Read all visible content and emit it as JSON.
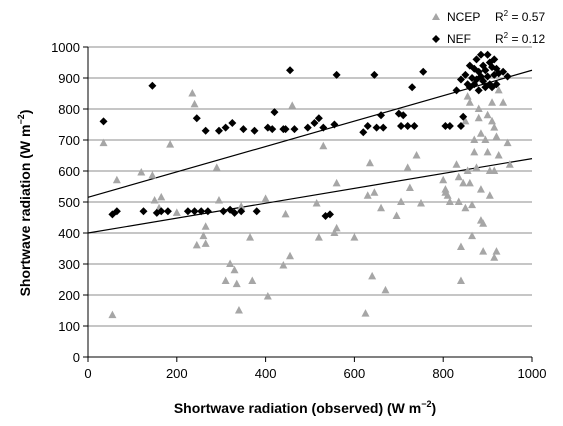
{
  "chart_data": {
    "type": "scatter",
    "title": "",
    "xlabel": "Shortwave radiation (observed) (W m",
    "xlabel_exp": "−2",
    "xlabel_end": ")",
    "ylabel": "Shortwave radiation  (W m",
    "ylabel_exp": "−2",
    "ylabel_end": ")",
    "xlim": [
      0,
      1000
    ],
    "ylim": [
      0,
      1000
    ],
    "xticks": [
      "0",
      "200",
      "400",
      "600",
      "800",
      "1000"
    ],
    "yticks": [
      "0",
      "100",
      "200",
      "300",
      "400",
      "500",
      "600",
      "700",
      "800",
      "900",
      "1000"
    ],
    "grid": "horizontal",
    "legend_position": "top-right",
    "series": [
      {
        "name": "NCEP",
        "marker": "triangle",
        "color": "#a6a6a6",
        "r2_label": "R",
        "r2_exp": "2",
        "r2_value": " = 0.57",
        "trend": [
          [
            0,
            400
          ],
          [
            1000,
            640
          ]
        ],
        "points": [
          [
            35,
            690
          ],
          [
            55,
            135
          ],
          [
            65,
            570
          ],
          [
            120,
            595
          ],
          [
            145,
            585
          ],
          [
            150,
            505
          ],
          [
            160,
            480
          ],
          [
            165,
            515
          ],
          [
            185,
            685
          ],
          [
            200,
            465
          ],
          [
            235,
            850
          ],
          [
            240,
            815
          ],
          [
            245,
            360
          ],
          [
            260,
            390
          ],
          [
            265,
            420
          ],
          [
            265,
            365
          ],
          [
            290,
            610
          ],
          [
            295,
            505
          ],
          [
            310,
            245
          ],
          [
            320,
            300
          ],
          [
            330,
            280
          ],
          [
            335,
            235
          ],
          [
            340,
            150
          ],
          [
            345,
            485
          ],
          [
            365,
            385
          ],
          [
            370,
            245
          ],
          [
            400,
            510
          ],
          [
            405,
            195
          ],
          [
            440,
            295
          ],
          [
            445,
            460
          ],
          [
            455,
            325
          ],
          [
            460,
            810
          ],
          [
            515,
            495
          ],
          [
            520,
            385
          ],
          [
            530,
            680
          ],
          [
            555,
            400
          ],
          [
            560,
            415
          ],
          [
            560,
            560
          ],
          [
            600,
            385
          ],
          [
            625,
            140
          ],
          [
            630,
            520
          ],
          [
            635,
            625
          ],
          [
            640,
            260
          ],
          [
            645,
            530
          ],
          [
            660,
            480
          ],
          [
            670,
            215
          ],
          [
            695,
            455
          ],
          [
            705,
            500
          ],
          [
            720,
            610
          ],
          [
            725,
            545
          ],
          [
            740,
            650
          ],
          [
            750,
            495
          ],
          [
            800,
            570
          ],
          [
            805,
            540
          ],
          [
            805,
            530
          ],
          [
            810,
            520
          ],
          [
            815,
            500
          ],
          [
            830,
            620
          ],
          [
            835,
            580
          ],
          [
            835,
            500
          ],
          [
            840,
            355
          ],
          [
            840,
            245
          ],
          [
            845,
            560
          ],
          [
            850,
            760
          ],
          [
            850,
            480
          ],
          [
            855,
            840
          ],
          [
            855,
            600
          ],
          [
            860,
            820
          ],
          [
            860,
            560
          ],
          [
            865,
            490
          ],
          [
            865,
            390
          ],
          [
            870,
            700
          ],
          [
            870,
            660
          ],
          [
            875,
            610
          ],
          [
            880,
            800
          ],
          [
            880,
            770
          ],
          [
            885,
            720
          ],
          [
            885,
            540
          ],
          [
            885,
            440
          ],
          [
            890,
            430
          ],
          [
            890,
            340
          ],
          [
            895,
            700
          ],
          [
            900,
            780
          ],
          [
            900,
            660
          ],
          [
            905,
            600
          ],
          [
            905,
            520
          ],
          [
            910,
            820
          ],
          [
            910,
            760
          ],
          [
            915,
            740
          ],
          [
            915,
            600
          ],
          [
            915,
            320
          ],
          [
            920,
            340
          ],
          [
            920,
            710
          ],
          [
            925,
            860
          ],
          [
            925,
            650
          ],
          [
            935,
            820
          ],
          [
            945,
            690
          ],
          [
            950,
            620
          ]
        ]
      },
      {
        "name": "NEF",
        "marker": "diamond",
        "color": "#000000",
        "r2_label": "R",
        "r2_exp": "2",
        "r2_value": " = 0.12",
        "trend": [
          [
            0,
            515
          ],
          [
            1000,
            925
          ]
        ],
        "points": [
          [
            35,
            760
          ],
          [
            55,
            460
          ],
          [
            65,
            470
          ],
          [
            125,
            470
          ],
          [
            145,
            875
          ],
          [
            155,
            465
          ],
          [
            165,
            470
          ],
          [
            180,
            470
          ],
          [
            225,
            470
          ],
          [
            240,
            470
          ],
          [
            245,
            770
          ],
          [
            255,
            470
          ],
          [
            265,
            730
          ],
          [
            270,
            470
          ],
          [
            295,
            730
          ],
          [
            305,
            470
          ],
          [
            310,
            740
          ],
          [
            320,
            475
          ],
          [
            325,
            755
          ],
          [
            330,
            465
          ],
          [
            345,
            470
          ],
          [
            350,
            735
          ],
          [
            375,
            730
          ],
          [
            380,
            470
          ],
          [
            405,
            740
          ],
          [
            415,
            735
          ],
          [
            420,
            790
          ],
          [
            440,
            735
          ],
          [
            445,
            735
          ],
          [
            455,
            925
          ],
          [
            465,
            735
          ],
          [
            495,
            740
          ],
          [
            510,
            755
          ],
          [
            520,
            770
          ],
          [
            530,
            740
          ],
          [
            535,
            455
          ],
          [
            545,
            460
          ],
          [
            555,
            750
          ],
          [
            560,
            910
          ],
          [
            620,
            725
          ],
          [
            630,
            745
          ],
          [
            645,
            910
          ],
          [
            650,
            740
          ],
          [
            660,
            780
          ],
          [
            665,
            740
          ],
          [
            700,
            785
          ],
          [
            705,
            745
          ],
          [
            710,
            780
          ],
          [
            720,
            745
          ],
          [
            730,
            870
          ],
          [
            735,
            745
          ],
          [
            755,
            920
          ],
          [
            805,
            745
          ],
          [
            815,
            745
          ],
          [
            830,
            860
          ],
          [
            840,
            895
          ],
          [
            840,
            745
          ],
          [
            845,
            775
          ],
          [
            850,
            910
          ],
          [
            855,
            880
          ],
          [
            860,
            940
          ],
          [
            860,
            870
          ],
          [
            865,
            900
          ],
          [
            870,
            930
          ],
          [
            870,
            880
          ],
          [
            875,
            960
          ],
          [
            875,
            895
          ],
          [
            880,
            920
          ],
          [
            880,
            860
          ],
          [
            885,
            975
          ],
          [
            885,
            905
          ],
          [
            890,
            940
          ],
          [
            890,
            890
          ],
          [
            895,
            925
          ],
          [
            895,
            870
          ],
          [
            900,
            975
          ],
          [
            900,
            905
          ],
          [
            905,
            950
          ],
          [
            905,
            880
          ],
          [
            910,
            935
          ],
          [
            910,
            870
          ],
          [
            915,
            960
          ],
          [
            915,
            910
          ],
          [
            920,
            930
          ],
          [
            920,
            880
          ],
          [
            925,
            915
          ],
          [
            935,
            920
          ],
          [
            945,
            905
          ]
        ]
      }
    ]
  }
}
